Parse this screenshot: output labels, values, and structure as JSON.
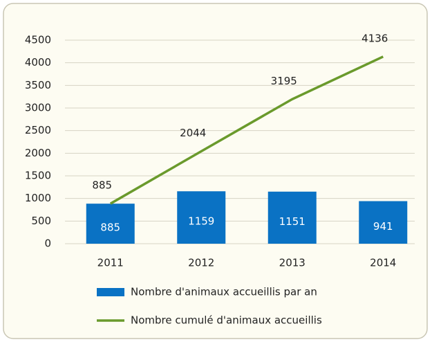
{
  "chart_data": {
    "type": "bar",
    "categories": [
      "2011",
      "2012",
      "2013",
      "2014"
    ],
    "series": [
      {
        "name": "Nombre d'animaux accueillis par an",
        "type": "bar",
        "color": "#0a72c4",
        "values": [
          885,
          1159,
          1151,
          941
        ]
      },
      {
        "name": "Nombre cumulé d'animaux accueillis",
        "type": "line",
        "color": "#6a9a2c",
        "values": [
          885,
          2044,
          3195,
          4136
        ]
      }
    ],
    "ylim": [
      0,
      4500
    ],
    "yticks": [
      0,
      500,
      1000,
      1500,
      2000,
      2500,
      3000,
      3500,
      4000,
      4500
    ],
    "grid": true
  }
}
